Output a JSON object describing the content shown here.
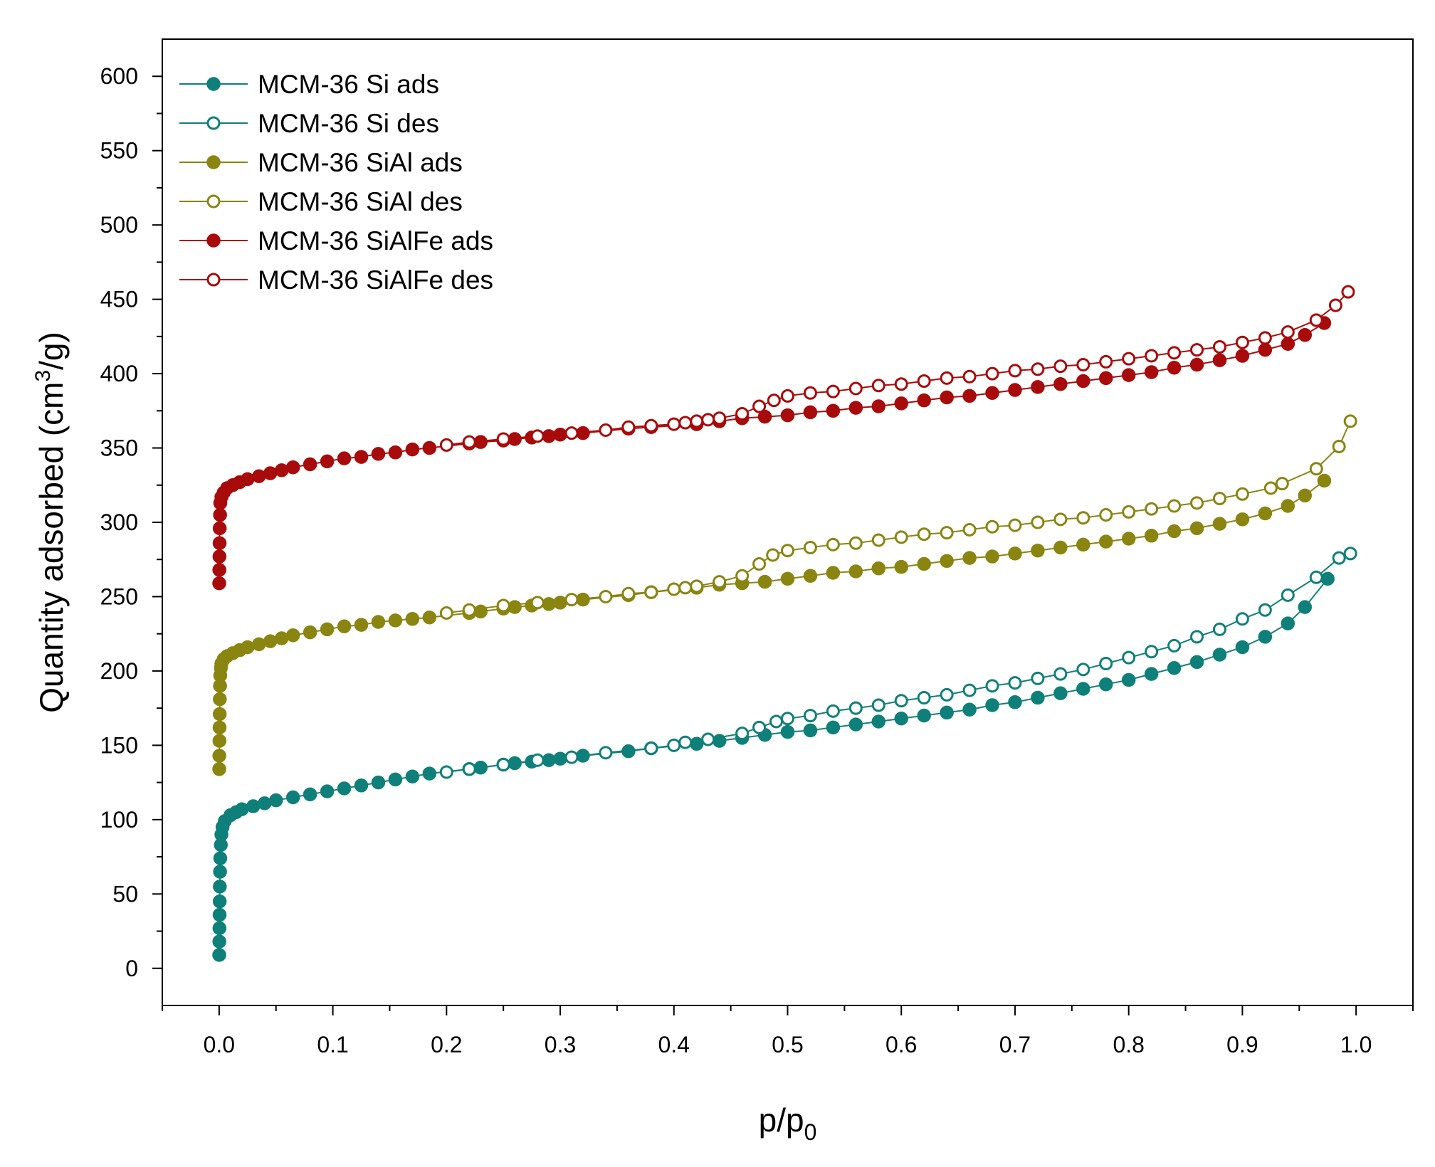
{
  "chart_data": {
    "type": "scatter",
    "title": "",
    "xlabel": "p/p0",
    "xlabel_main": "p/p",
    "xlabel_sub": "0",
    "ylabel": "Quantity adsorbed (cm3/g)",
    "ylabel_main": "Quantity adsorbed (cm",
    "ylabel_sup": "3",
    "ylabel_end": "/g)",
    "xlim": [
      -0.05,
      1.05
    ],
    "ylim": [
      -25,
      625
    ],
    "xticks": [
      0.0,
      0.1,
      0.2,
      0.3,
      0.4,
      0.5,
      0.6,
      0.7,
      0.8,
      0.9,
      1.0
    ],
    "xtick_labels": [
      "0.0",
      "0.1",
      "0.2",
      "0.3",
      "0.4",
      "0.5",
      "0.6",
      "0.7",
      "0.8",
      "0.9",
      "1.0"
    ],
    "yticks": [
      0,
      50,
      100,
      150,
      200,
      250,
      300,
      350,
      400,
      450,
      500,
      550,
      600
    ],
    "ytick_labels": [
      "0",
      "50",
      "100",
      "150",
      "200",
      "250",
      "300",
      "350",
      "400",
      "450",
      "500",
      "550",
      "600"
    ],
    "legend_position": "top-left",
    "grid": false,
    "series": [
      {
        "name": "MCM-36 Si ads",
        "color": "#0f8079",
        "filled": true,
        "x": [
          0.0001,
          0.0002,
          0.0003,
          0.0004,
          0.0005,
          0.0006,
          0.0008,
          0.001,
          0.0015,
          0.002,
          0.003,
          0.005,
          0.01,
          0.015,
          0.02,
          0.03,
          0.04,
          0.05,
          0.065,
          0.08,
          0.095,
          0.11,
          0.125,
          0.14,
          0.155,
          0.17,
          0.185,
          0.22,
          0.23,
          0.25,
          0.26,
          0.275,
          0.29,
          0.3,
          0.32,
          0.36,
          0.38,
          0.42,
          0.44,
          0.46,
          0.48,
          0.5,
          0.52,
          0.54,
          0.56,
          0.58,
          0.6,
          0.62,
          0.64,
          0.66,
          0.68,
          0.7,
          0.72,
          0.74,
          0.76,
          0.78,
          0.8,
          0.82,
          0.84,
          0.86,
          0.88,
          0.9,
          0.92,
          0.94,
          0.955,
          0.975
        ],
        "y": [
          9,
          18,
          27,
          36,
          45,
          55,
          65,
          74,
          83,
          90,
          95,
          99,
          103,
          105,
          107,
          109,
          111,
          113,
          115,
          117,
          119,
          121,
          123,
          125,
          127,
          129,
          131,
          134,
          135,
          137,
          138,
          139,
          140,
          141,
          143,
          146,
          148,
          151,
          153,
          155,
          157,
          159,
          160,
          162,
          164,
          166,
          168,
          170,
          172,
          174,
          177,
          179,
          182,
          185,
          188,
          191,
          194,
          198,
          202,
          206,
          211,
          216,
          223,
          232,
          243,
          262
        ]
      },
      {
        "name": "MCM-36 Si des",
        "color": "#0f8079",
        "filled": false,
        "x": [
          0.995,
          0.985,
          0.965,
          0.94,
          0.92,
          0.9,
          0.88,
          0.86,
          0.84,
          0.82,
          0.8,
          0.78,
          0.76,
          0.74,
          0.72,
          0.7,
          0.68,
          0.66,
          0.64,
          0.62,
          0.6,
          0.58,
          0.56,
          0.54,
          0.52,
          0.5,
          0.49,
          0.475,
          0.46,
          0.43,
          0.41,
          0.4,
          0.38,
          0.34,
          0.31,
          0.28,
          0.25,
          0.22,
          0.2
        ],
        "y": [
          279,
          276,
          263,
          251,
          241,
          235,
          228,
          223,
          217,
          213,
          209,
          205,
          201,
          198,
          195,
          192,
          190,
          187,
          184,
          182,
          180,
          177,
          175,
          173,
          170,
          168,
          166,
          162,
          158,
          154,
          152,
          150,
          148,
          145,
          142,
          140,
          137,
          134,
          132
        ]
      },
      {
        "name": "MCM-36 SiAl ads",
        "color": "#8a8511",
        "filled": true,
        "x": [
          0.0001,
          0.0002,
          0.0003,
          0.0004,
          0.0005,
          0.0006,
          0.0008,
          0.001,
          0.0015,
          0.002,
          0.004,
          0.007,
          0.012,
          0.018,
          0.025,
          0.035,
          0.045,
          0.055,
          0.065,
          0.08,
          0.095,
          0.11,
          0.125,
          0.14,
          0.155,
          0.17,
          0.185,
          0.22,
          0.23,
          0.25,
          0.26,
          0.275,
          0.29,
          0.3,
          0.32,
          0.36,
          0.38,
          0.42,
          0.44,
          0.46,
          0.48,
          0.5,
          0.52,
          0.54,
          0.56,
          0.58,
          0.6,
          0.62,
          0.64,
          0.66,
          0.68,
          0.7,
          0.72,
          0.74,
          0.76,
          0.78,
          0.8,
          0.82,
          0.84,
          0.86,
          0.88,
          0.9,
          0.92,
          0.94,
          0.955,
          0.972
        ],
        "y": [
          134,
          143,
          153,
          162,
          171,
          181,
          190,
          197,
          202,
          205,
          208,
          210,
          212,
          214,
          216,
          218,
          220,
          222,
          224,
          226,
          228,
          230,
          231,
          233,
          234,
          235,
          236,
          239,
          240,
          242,
          243,
          244,
          245,
          246,
          248,
          251,
          253,
          256,
          258,
          259,
          260,
          262,
          264,
          266,
          267,
          269,
          270,
          272,
          274,
          276,
          277,
          279,
          281,
          283,
          285,
          287,
          289,
          291,
          294,
          296,
          299,
          302,
          306,
          311,
          318,
          328
        ]
      },
      {
        "name": "MCM-36 SiAl des",
        "color": "#8a8511",
        "filled": false,
        "x": [
          0.995,
          0.985,
          0.965,
          0.935,
          0.925,
          0.9,
          0.88,
          0.86,
          0.84,
          0.82,
          0.8,
          0.78,
          0.76,
          0.74,
          0.72,
          0.7,
          0.68,
          0.66,
          0.64,
          0.62,
          0.6,
          0.58,
          0.56,
          0.54,
          0.52,
          0.5,
          0.487,
          0.475,
          0.46,
          0.44,
          0.42,
          0.41,
          0.4,
          0.38,
          0.36,
          0.34,
          0.31,
          0.28,
          0.25,
          0.22,
          0.2
        ],
        "y": [
          368,
          351,
          336,
          326,
          323,
          319,
          316,
          313,
          311,
          309,
          307,
          305,
          303,
          302,
          300,
          298,
          297,
          295,
          293,
          292,
          290,
          288,
          286,
          285,
          283,
          281,
          278,
          272,
          264,
          260,
          257,
          256,
          255,
          253,
          252,
          250,
          248,
          246,
          244,
          241,
          239
        ]
      },
      {
        "name": "MCM-36 SiAlFe ads",
        "color": "#a80b0b",
        "filled": true,
        "x": [
          0.0001,
          0.0002,
          0.0003,
          0.0004,
          0.0005,
          0.0008,
          0.001,
          0.002,
          0.004,
          0.007,
          0.012,
          0.018,
          0.025,
          0.035,
          0.045,
          0.055,
          0.065,
          0.08,
          0.095,
          0.11,
          0.125,
          0.14,
          0.155,
          0.17,
          0.185,
          0.22,
          0.23,
          0.25,
          0.26,
          0.275,
          0.29,
          0.3,
          0.32,
          0.36,
          0.38,
          0.42,
          0.44,
          0.46,
          0.48,
          0.5,
          0.52,
          0.54,
          0.56,
          0.58,
          0.6,
          0.62,
          0.64,
          0.66,
          0.68,
          0.7,
          0.72,
          0.74,
          0.76,
          0.78,
          0.8,
          0.82,
          0.84,
          0.86,
          0.88,
          0.9,
          0.92,
          0.94,
          0.955,
          0.972
        ],
        "y": [
          259,
          268,
          277,
          286,
          296,
          305,
          313,
          317,
          320,
          323,
          325,
          327,
          329,
          331,
          333,
          335,
          337,
          339,
          341,
          343,
          344,
          346,
          347,
          349,
          350,
          353,
          354,
          355,
          356,
          357,
          358,
          359,
          360,
          363,
          364,
          366,
          368,
          370,
          371,
          372,
          374,
          375,
          377,
          378,
          380,
          382,
          384,
          385,
          387,
          389,
          391,
          393,
          395,
          397,
          399,
          401,
          404,
          406,
          409,
          412,
          416,
          420,
          426,
          434
        ]
      },
      {
        "name": "MCM-36 SiAlFe des",
        "color": "#a80b0b",
        "filled": false,
        "x": [
          0.993,
          0.982,
          0.965,
          0.94,
          0.92,
          0.9,
          0.88,
          0.86,
          0.84,
          0.82,
          0.8,
          0.78,
          0.76,
          0.74,
          0.72,
          0.7,
          0.68,
          0.66,
          0.64,
          0.62,
          0.6,
          0.58,
          0.56,
          0.54,
          0.52,
          0.5,
          0.488,
          0.475,
          0.46,
          0.44,
          0.43,
          0.42,
          0.41,
          0.4,
          0.38,
          0.36,
          0.34,
          0.31,
          0.28,
          0.25,
          0.22,
          0.2
        ],
        "y": [
          455,
          446,
          436,
          428,
          424,
          421,
          418,
          416,
          414,
          412,
          410,
          408,
          406,
          405,
          403,
          402,
          400,
          398,
          397,
          395,
          393,
          392,
          390,
          388,
          387,
          385,
          382,
          378,
          373,
          370,
          369,
          368,
          367,
          366,
          365,
          364,
          362,
          360,
          358,
          356,
          354,
          352
        ]
      }
    ]
  }
}
